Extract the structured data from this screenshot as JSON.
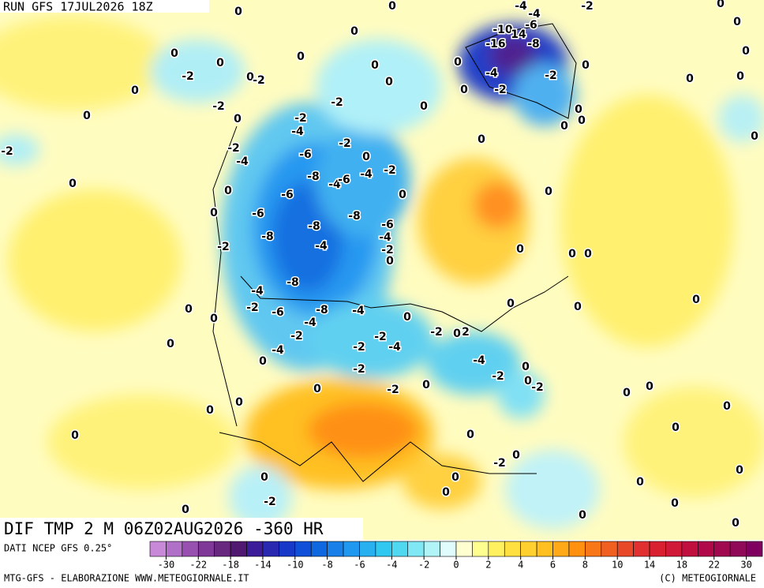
{
  "header": {
    "run": "RUN GFS 17JUL2026 18Z",
    "field": "DIF TMP 2 M 06Z02AUG2026 -360 HR"
  },
  "map": {
    "contour_labels": [
      0,
      0,
      -4,
      -4,
      -2,
      0,
      0,
      -10,
      14,
      -6,
      -16,
      -8,
      0,
      0,
      0,
      0,
      0,
      0,
      0,
      -2,
      0,
      0,
      -2,
      -4,
      -2,
      0,
      0,
      0,
      0,
      0,
      -2,
      0,
      -2,
      -2,
      0,
      0,
      0,
      0,
      -2,
      -4,
      0,
      -2,
      -4,
      -2,
      0,
      -2,
      0,
      -6,
      0,
      -2,
      -8,
      -4,
      -6,
      -4,
      0,
      0,
      -6,
      0,
      0,
      -6,
      -8,
      0,
      -8,
      -8,
      -6,
      -4,
      -2,
      -4,
      -2,
      0,
      0,
      0,
      0,
      -8,
      -4,
      -2,
      -6,
      -8,
      -4,
      -4,
      0,
      0,
      0,
      0,
      0,
      0,
      -2,
      -2,
      -2,
      0,
      2,
      0,
      -4,
      -2,
      -4,
      0,
      -4,
      -2,
      -2,
      0,
      0,
      -2,
      -2,
      0,
      0,
      0,
      0,
      0,
      0,
      0,
      0,
      0,
      0,
      0,
      -2,
      0,
      0,
      0,
      0,
      -2,
      0,
      0,
      0,
      0,
      0
    ]
  },
  "legend": {
    "source": "DATI NCEP GFS 0.25°",
    "colors": [
      "#c88ad8",
      "#b070c8",
      "#9850b0",
      "#803898",
      "#682880",
      "#501870",
      "#3c1c98",
      "#2828b0",
      "#1838c8",
      "#1050d8",
      "#1068e0",
      "#1880e8",
      "#2098f0",
      "#28b0f0",
      "#30c8f0",
      "#50d8f0",
      "#80e8f4",
      "#b0f4f8",
      "#e0fcfc",
      "#ffffd0",
      "#ffff90",
      "#fff060",
      "#ffe040",
      "#ffd030",
      "#ffc020",
      "#ffa818",
      "#ff9010",
      "#f87818",
      "#f06020",
      "#e84828",
      "#e03030",
      "#d82030",
      "#d01838",
      "#c01040",
      "#b00848",
      "#a00850",
      "#900858",
      "#800060"
    ],
    "ticks": [
      -30,
      -22,
      -18,
      -14,
      -10,
      -8,
      -6,
      -4,
      -2,
      0,
      2,
      4,
      6,
      8,
      10,
      14,
      18,
      22,
      30
    ]
  },
  "footer": {
    "left": "MTG-GFS - ELABORAZIONE WWW.METEOGIORNALE.IT",
    "right": "(C) METEOGIORNALE"
  }
}
